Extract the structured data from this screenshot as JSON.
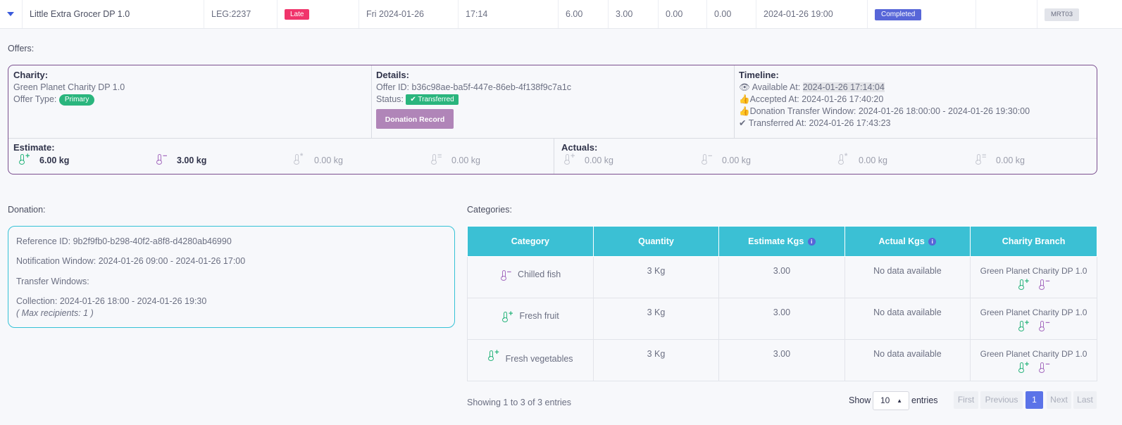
{
  "row": {
    "name": "Little Extra Grocer DP 1.0",
    "leg": "LEG:2237",
    "late": "Late",
    "date": "Fri 2024-01-26",
    "time": "17:14",
    "v1": "6.00",
    "v2": "3.00",
    "v3": "0.00",
    "v4": "0.00",
    "datetime": "2024-01-26 19:00",
    "status": "Completed",
    "code": "MRT03"
  },
  "offers_label": "Offers:",
  "offer": {
    "charity_h": "Charity:",
    "charity_name": "Green Planet Charity DP 1.0",
    "offer_type_label": "Offer Type:",
    "offer_type": "Primary",
    "details_h": "Details:",
    "offer_id": "Offer ID: b36c98ae-ba5f-447e-86eb-4f138f9c7a1c",
    "status_label": "Status:",
    "status": "Transferred",
    "donation_record": "Donation Record",
    "timeline_h": "Timeline:",
    "available_label": "Available At:",
    "available_val": "2024-01-26 17:14:04",
    "accepted_label": "Accepted At:",
    "accepted_val": "2024-01-26 17:40:20",
    "window_label": "Donation Transfer Window:",
    "window_val": "2024-01-26 18:00:00 - 2024-01-26 19:30:00",
    "transferred_label": "Transferred At:",
    "transferred_val": "2024-01-26 17:43:23",
    "estimate_h": "Estimate:",
    "estimates": [
      "6.00 kg",
      "3.00 kg",
      "0.00 kg",
      "0.00 kg"
    ],
    "actuals_h": "Actuals:",
    "actuals": [
      "0.00 kg",
      "0.00 kg",
      "0.00 kg",
      "0.00 kg"
    ]
  },
  "donation_label": "Donation:",
  "donation": {
    "reference": "Reference ID: 9b2f9fb0-b298-40f2-a8f8-d4280ab46990",
    "notification": "Notification Window: 2024-01-26 09:00 - 2024-01-26 17:00",
    "transfer_windows": "Transfer Windows:",
    "collection": "Collection: 2024-01-26 18:00 - 2024-01-26 19:30",
    "max_recipients": "( Max recipients: 1 )"
  },
  "categories_label": "Categories:",
  "table": {
    "headers": [
      "Category",
      "Quantity",
      "Estimate Kgs",
      "Actual Kgs",
      "Charity Branch"
    ],
    "rows": [
      {
        "category": "Chilled fish",
        "icon": "chilled",
        "quantity": "3 Kg",
        "estimate": "3.00",
        "actual": "No data available",
        "branch": "Green Planet Charity DP 1.0"
      },
      {
        "category": "Fresh fruit",
        "icon": "fresh",
        "quantity": "3 Kg",
        "estimate": "3.00",
        "actual": "No data available",
        "branch": "Green Planet Charity DP 1.0"
      },
      {
        "category": "Fresh vegetables",
        "icon": "fresh",
        "quantity": "3 Kg",
        "estimate": "3.00",
        "actual": "No data available",
        "branch": "Green Planet Charity DP 1.0"
      }
    ]
  },
  "footer": {
    "showing": "Showing 1 to 3 of 3 entries",
    "show": "Show",
    "page_size": "10",
    "entries": "entries",
    "first": "First",
    "previous": "Previous",
    "page": "1",
    "next": "Next",
    "last": "Last"
  }
}
